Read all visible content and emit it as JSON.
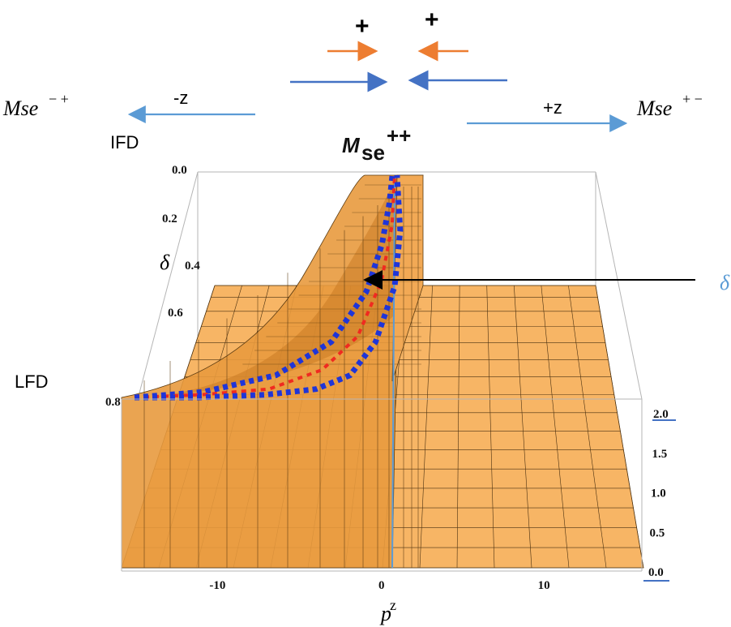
{
  "annotations": {
    "plus_left": "+",
    "plus_right": "+",
    "left_label_base": "Mse",
    "left_label_sup": "− +",
    "left_arrow_label": "-z",
    "right_arrow_label": "+z",
    "right_label_base": "Mse",
    "right_label_sup": "+ −",
    "ifd_label": "IFD",
    "lfd_label": "LFD",
    "cut_label": "δ"
  },
  "colors": {
    "surface": "#F7B565",
    "surface_dark": "#D78A2E",
    "blue_dotted": "#1F35D8",
    "red_dotted": "#F02A20",
    "arrow_orange": "#ED7D31",
    "arrow_blue": "#4472C4",
    "arrow_lightblue": "#5B9BD5",
    "pointer": "#000000"
  },
  "chart_data": {
    "type": "surface3d",
    "title_base": "M",
    "title_sub": "se",
    "title_sup": "++",
    "xlabel_base": "p",
    "xlabel_sup": "z",
    "ylabel": "δ",
    "x_ticks": [
      "-10",
      "0",
      "10"
    ],
    "x_range": [
      -16,
      16
    ],
    "delta_ticks": [
      "0.0",
      "0.2",
      "0.4",
      "0.6",
      "0.8"
    ],
    "delta_range": [
      0,
      0.8
    ],
    "z_ticks": [
      "0.0",
      "0.5",
      "1.0",
      "1.5",
      "2.0"
    ],
    "z_range": [
      0,
      2
    ],
    "curves": [
      {
        "name": "blue-dotted-left",
        "style": "dotted",
        "color": "#1F35D8",
        "points": [
          [
            -16,
            0.8
          ],
          [
            -12,
            0.78
          ],
          [
            -8,
            0.72
          ],
          [
            -5,
            0.6
          ],
          [
            -3,
            0.42
          ],
          [
            -2,
            0.25
          ],
          [
            -1.4,
            0.1
          ],
          [
            -1.2,
            0.0
          ]
        ]
      },
      {
        "name": "red-dotted-center",
        "style": "dotted",
        "color": "#F02A20",
        "points": [
          [
            -16,
            0.8
          ],
          [
            -12,
            0.79
          ],
          [
            -8,
            0.77
          ],
          [
            -5,
            0.7
          ],
          [
            -3,
            0.58
          ],
          [
            -1.5,
            0.38
          ],
          [
            -0.5,
            0.18
          ],
          [
            0,
            0.0
          ]
        ]
      },
      {
        "name": "blue-dotted-right",
        "style": "dotted",
        "color": "#1F35D8",
        "points": [
          [
            -16,
            0.8
          ],
          [
            -12,
            0.8
          ],
          [
            -8,
            0.79
          ],
          [
            -5,
            0.77
          ],
          [
            -3,
            0.72
          ],
          [
            -1.5,
            0.6
          ],
          [
            0,
            0.4
          ],
          [
            1,
            0.2
          ],
          [
            1.2,
            0.0
          ]
        ]
      }
    ]
  }
}
